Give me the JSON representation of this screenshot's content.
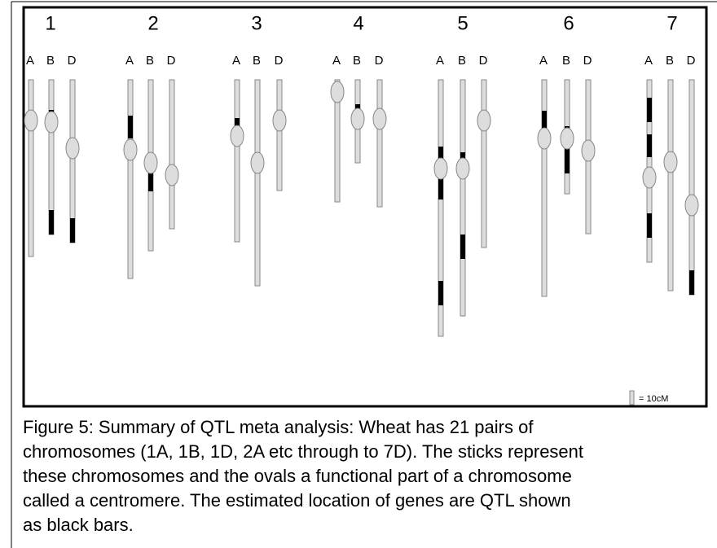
{
  "figure": {
    "groups": [
      {
        "number": "1",
        "chromosomes": [
          "A",
          "B",
          "D"
        ]
      },
      {
        "number": "2",
        "chromosomes": [
          "A",
          "B",
          "D"
        ]
      },
      {
        "number": "3",
        "chromosomes": [
          "A",
          "B",
          "D"
        ]
      },
      {
        "number": "4",
        "chromosomes": [
          "A",
          "B",
          "D"
        ]
      },
      {
        "number": "5",
        "chromosomes": [
          "A",
          "B",
          "D"
        ]
      },
      {
        "number": "6",
        "chromosomes": [
          "A",
          "B",
          "D"
        ]
      },
      {
        "number": "7",
        "chromosomes": [
          "A",
          "B",
          "D"
        ]
      }
    ],
    "scale_label": "= 10cM"
  },
  "caption": [
    "Figure 5: Summary of QTL meta analysis: Wheat has 21 pairs of",
    "chromosomes (1A, 1B, 1D, 2A etc through to 7D). The sticks represent",
    "these chromosomes and the ovals a functional part of a chromosome",
    "called a centromere. The estimated location of genes are QTL shown",
    "as black bars."
  ]
}
